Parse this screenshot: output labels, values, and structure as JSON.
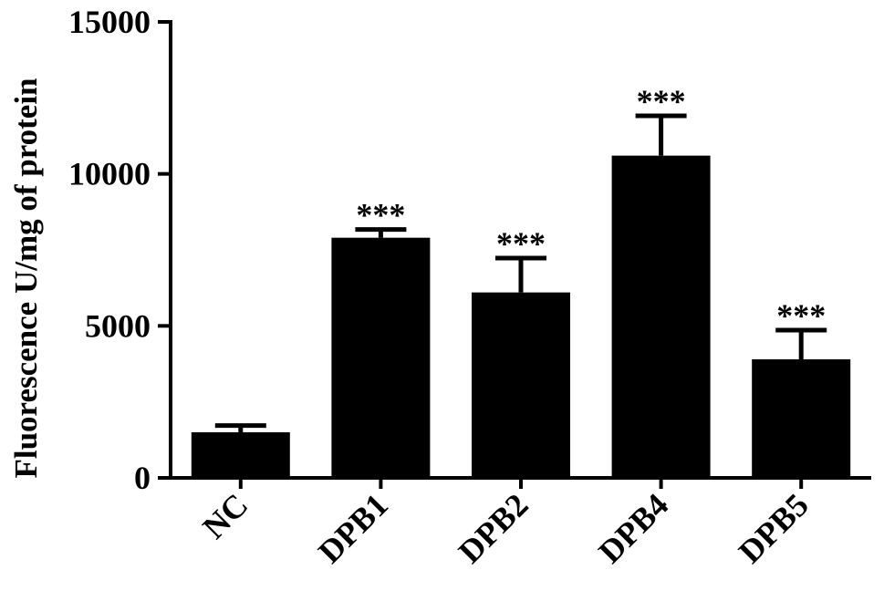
{
  "chart_data": {
    "type": "bar",
    "title": "",
    "xlabel": "",
    "ylabel": "Fluorescence U/mg of protein",
    "categories": [
      "NC",
      "DPB1",
      "DPB2",
      "DPB4",
      "DPB5"
    ],
    "values": [
      1500,
      7900,
      6100,
      10600,
      3900
    ],
    "error_upper": [
      220,
      270,
      1130,
      1310,
      960
    ],
    "annotations": [
      "",
      "***",
      "***",
      "***",
      "***"
    ],
    "yticks": [
      0,
      5000,
      10000,
      15000
    ],
    "ytick_labels": [
      "0",
      "5000",
      "10000",
      "15000"
    ],
    "ylim": [
      0,
      15000
    ],
    "grid": false,
    "legend": "none",
    "bar_color": "#000000"
  }
}
